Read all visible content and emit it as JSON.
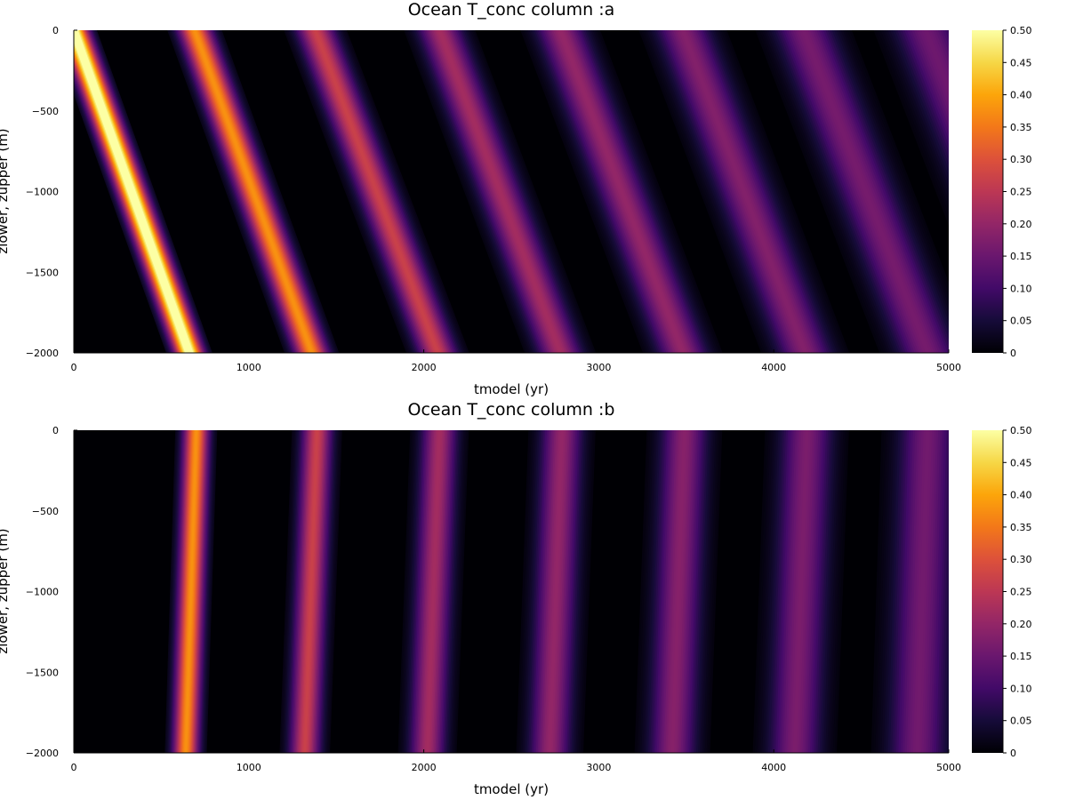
{
  "colormap": "inferno",
  "chart_data": [
    {
      "type": "heatmap",
      "title": "Ocean T_conc column :a",
      "xlabel": "tmodel (yr)",
      "ylabel": "zlower, zupper (m)",
      "xlim": [
        0,
        5000
      ],
      "ylim": [
        -2000,
        0
      ],
      "xticks": [
        0,
        1000,
        2000,
        3000,
        4000,
        5000
      ],
      "yticks": [
        0,
        -500,
        -1000,
        -1500,
        -2000
      ],
      "colorbar": {
        "clim": [
          0,
          0.5
        ],
        "ticks": [
          0,
          0.05,
          0.1,
          0.15,
          0.2,
          0.25,
          0.3,
          0.35,
          0.4,
          0.45,
          0.5
        ]
      },
      "grid": false,
      "bands": [
        {
          "t_surface": 0,
          "t_bottom": 660,
          "peak": 0.55,
          "width_yr": 55
        },
        {
          "t_surface": 690,
          "t_bottom": 1360,
          "peak": 0.38,
          "width_yr": 65
        },
        {
          "t_surface": 1380,
          "t_bottom": 2080,
          "peak": 0.27,
          "width_yr": 75
        },
        {
          "t_surface": 2090,
          "t_bottom": 2780,
          "peak": 0.22,
          "width_yr": 85
        },
        {
          "t_surface": 2780,
          "t_bottom": 3480,
          "peak": 0.2,
          "width_yr": 95
        },
        {
          "t_surface": 3480,
          "t_bottom": 4180,
          "peak": 0.18,
          "width_yr": 105
        },
        {
          "t_surface": 4170,
          "t_bottom": 4880,
          "peak": 0.165,
          "width_yr": 115
        },
        {
          "t_surface": 4870,
          "t_bottom": 5580,
          "peak": 0.155,
          "width_yr": 125
        }
      ]
    },
    {
      "type": "heatmap",
      "title": "Ocean T_conc column :b",
      "xlabel": "tmodel (yr)",
      "ylabel": "zlower, zupper (m)",
      "xlim": [
        0,
        5000
      ],
      "ylim": [
        -2000,
        0
      ],
      "xticks": [
        0,
        1000,
        2000,
        3000,
        4000,
        5000
      ],
      "yticks": [
        0,
        -500,
        -1000,
        -1500,
        -2000
      ],
      "colorbar": {
        "clim": [
          0,
          0.5
        ],
        "ticks": [
          0,
          0.05,
          0.1,
          0.15,
          0.2,
          0.25,
          0.3,
          0.35,
          0.4,
          0.45,
          0.5
        ]
      },
      "grid": false,
      "bands": [
        {
          "t_surface": 700,
          "t_bottom": 640,
          "peak": 0.38,
          "width_yr": 50
        },
        {
          "t_surface": 1390,
          "t_bottom": 1320,
          "peak": 0.27,
          "width_yr": 60
        },
        {
          "t_surface": 2090,
          "t_bottom": 2020,
          "peak": 0.22,
          "width_yr": 70
        },
        {
          "t_surface": 2790,
          "t_bottom": 2720,
          "peak": 0.2,
          "width_yr": 80
        },
        {
          "t_surface": 3490,
          "t_bottom": 3420,
          "peak": 0.185,
          "width_yr": 90
        },
        {
          "t_surface": 4190,
          "t_bottom": 4120,
          "peak": 0.17,
          "width_yr": 100
        },
        {
          "t_surface": 4880,
          "t_bottom": 4820,
          "peak": 0.16,
          "width_yr": 110
        }
      ]
    }
  ]
}
